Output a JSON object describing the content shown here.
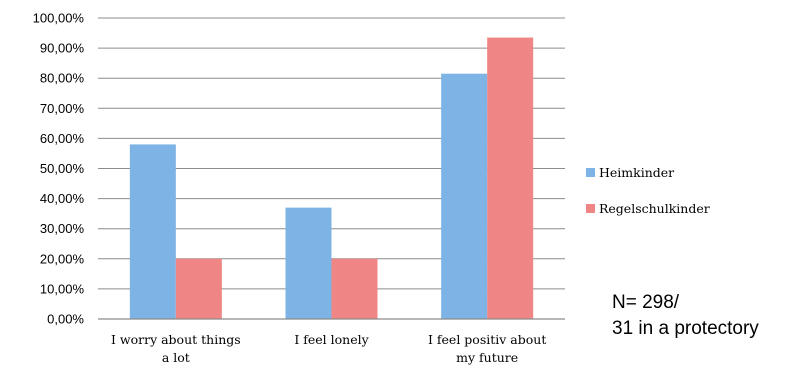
{
  "chart_data": {
    "type": "bar",
    "categories": [
      [
        "I worry about things",
        "a lot"
      ],
      [
        "I feel lonely"
      ],
      [
        "I feel positiv about",
        "my future"
      ]
    ],
    "series": [
      {
        "name": "Heimkinder",
        "color": "#7eb3e6",
        "values": [
          58,
          37,
          81.5
        ]
      },
      {
        "name": "Regelschulkinder",
        "color": "#f08585",
        "values": [
          20,
          20,
          93.5
        ]
      }
    ],
    "ylim": [
      0,
      100
    ],
    "yticks": [
      "0,00%",
      "10,00%",
      "20,00%",
      "30,00%",
      "40,00%",
      "50,00%",
      "60,00%",
      "70,00%",
      "80,00%",
      "90,00%",
      "100,00%"
    ],
    "grid": true,
    "legend_position": "right"
  },
  "note": {
    "line1": "N= 298/",
    "line2": "31 in a protectory"
  }
}
